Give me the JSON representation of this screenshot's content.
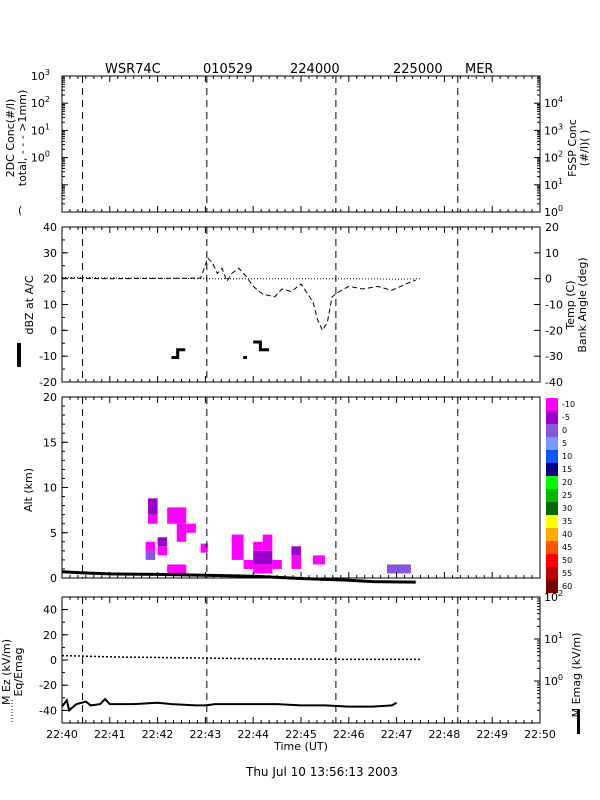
{
  "header": {
    "title_left": "WSR74C",
    "title_date": "010529",
    "title_t1": "224000",
    "title_t2": "225000",
    "title_tag": "MER"
  },
  "footer": {
    "timestamp": "Thu Jul 10 13:56:13 2003"
  },
  "colors": {
    "line": "#000000",
    "bg": "#ffffff"
  },
  "chart_data": [
    {
      "type": "line",
      "id": "conc",
      "ylabel": "2DC Conc(#/l)",
      "ylabel2": "total, - - - >1mm)",
      "ylabel_paren": "(",
      "y2label": "FSSP Conc",
      "y2label2": "(#/l)(  )",
      "yscale": "log",
      "ylim": [
        0.01,
        1000
      ],
      "y2lim": [
        1,
        100000
      ],
      "yticks": [
        {
          "v": 1000,
          "b": "10",
          "e": "3"
        },
        {
          "v": 100,
          "b": "10",
          "e": "2"
        },
        {
          "v": 10,
          "b": "10",
          "e": "1"
        },
        {
          "v": 1,
          "b": "10",
          "e": "0"
        }
      ],
      "y2ticks": [
        {
          "v": 10000,
          "b": "10",
          "e": "4"
        },
        {
          "v": 1000,
          "b": "10",
          "e": "3"
        },
        {
          "v": 100,
          "b": "10",
          "e": "2"
        },
        {
          "v": 10,
          "b": "10",
          "e": "1"
        },
        {
          "v": 1,
          "b": "10",
          "e": "0"
        }
      ],
      "series": []
    },
    {
      "type": "line",
      "id": "dbz",
      "ylabel": "dBZ at A/C",
      "y2label": "Temp (C)",
      "y2label2": "Bank Angle (deg)",
      "ylim": [
        -20,
        40
      ],
      "yticks": [
        "-20",
        "-10",
        "0",
        "10",
        "20",
        "30",
        "40"
      ],
      "y2lim": [
        -40,
        20
      ],
      "y2ticks": [
        "-40",
        "-30",
        "-20",
        "-10",
        "0",
        "10",
        "20"
      ],
      "series": [
        {
          "style": "dbz-thick",
          "points": [
            [
              42.29,
              -10.5
            ],
            [
              42.42,
              -10.5
            ],
            [
              42.42,
              -7.5
            ],
            [
              42.58,
              -7.5
            ]
          ]
        },
        {
          "style": "dbz-thick",
          "points": [
            [
              43.79,
              -10.5
            ],
            [
              43.87,
              -10.5
            ]
          ]
        },
        {
          "style": "dbz-thick",
          "points": [
            [
              44.0,
              -4.5
            ],
            [
              44.15,
              -4.5
            ],
            [
              44.15,
              -7.5
            ],
            [
              44.33,
              -7.5
            ]
          ]
        },
        {
          "style": "temp-dotted",
          "points": [
            [
              40.0,
              0.5
            ],
            [
              41.0,
              0.3
            ],
            [
              42.0,
              0.2
            ],
            [
              43.0,
              0.0
            ],
            [
              44.0,
              0.0
            ],
            [
              45.0,
              0.0
            ],
            [
              46.0,
              0.0
            ],
            [
              47.0,
              -0.2
            ],
            [
              47.5,
              0.0
            ]
          ]
        },
        {
          "style": "bank-dashed",
          "points": [
            [
              40.0,
              0.2
            ],
            [
              41.0,
              0.0
            ],
            [
              42.0,
              0.1
            ],
            [
              42.9,
              0.2
            ],
            [
              43.05,
              8.0
            ],
            [
              43.15,
              6.0
            ],
            [
              43.25,
              2.0
            ],
            [
              43.35,
              4.0
            ],
            [
              43.45,
              -1.0
            ],
            [
              43.55,
              2.0
            ],
            [
              43.7,
              4.0
            ],
            [
              43.85,
              1.0
            ],
            [
              44.0,
              -3.0
            ],
            [
              44.2,
              -6.0
            ],
            [
              44.45,
              -7.0
            ],
            [
              44.6,
              -4.0
            ],
            [
              44.8,
              -5.0
            ],
            [
              45.0,
              -2.0
            ],
            [
              45.25,
              -9.0
            ],
            [
              45.35,
              -16.0
            ],
            [
              45.45,
              -20.0
            ],
            [
              45.55,
              -17.0
            ],
            [
              45.65,
              -7.0
            ],
            [
              45.8,
              -5.0
            ],
            [
              46.0,
              -3.0
            ],
            [
              46.3,
              -4.0
            ],
            [
              46.6,
              -3.0
            ],
            [
              46.9,
              -4.5
            ],
            [
              47.2,
              -2.0
            ],
            [
              47.4,
              -0.5
            ]
          ]
        }
      ]
    },
    {
      "type": "heatmap",
      "id": "radar",
      "ylabel": "Alt (km)",
      "ylim": [
        0,
        20
      ],
      "yticks": [
        "0",
        "5",
        "10",
        "15",
        "20"
      ],
      "colorbar": [
        {
          "label": "-10",
          "color": "#ff00ff"
        },
        {
          "label": "-5",
          "color": "#9900cc"
        },
        {
          "label": "0",
          "color": "#8855dd"
        },
        {
          "label": "5",
          "color": "#7799ff"
        },
        {
          "label": "10",
          "color": "#1155ff"
        },
        {
          "label": "15",
          "color": "#000088"
        },
        {
          "label": "20",
          "color": "#00ff00"
        },
        {
          "label": "25",
          "color": "#00bb00"
        },
        {
          "label": "30",
          "color": "#006600"
        },
        {
          "label": "35",
          "color": "#ffff00"
        },
        {
          "label": "40",
          "color": "#ffaa00"
        },
        {
          "label": "45",
          "color": "#ff5500"
        },
        {
          "label": "50",
          "color": "#ff0000"
        },
        {
          "label": "55",
          "color": "#bb0000"
        },
        {
          "label": "60",
          "color": "#770000"
        }
      ],
      "cells": [
        {
          "x0": 41.8,
          "x1": 42.0,
          "y0": 6.0,
          "y1": 7.0,
          "dbz": -10
        },
        {
          "x0": 41.8,
          "x1": 42.0,
          "y0": 7.0,
          "y1": 8.8,
          "dbz": -5
        },
        {
          "x0": 41.75,
          "x1": 41.95,
          "y0": 2.0,
          "y1": 3.0,
          "dbz": 0
        },
        {
          "x0": 41.75,
          "x1": 41.95,
          "y0": 3.0,
          "y1": 4.0,
          "dbz": -10
        },
        {
          "x0": 42.0,
          "x1": 42.2,
          "y0": 3.5,
          "y1": 4.5,
          "dbz": -5
        },
        {
          "x0": 42.0,
          "x1": 42.2,
          "y0": 2.5,
          "y1": 3.5,
          "dbz": -10
        },
        {
          "x0": 42.2,
          "x1": 42.6,
          "y0": 6.0,
          "y1": 7.8,
          "dbz": -10
        },
        {
          "x0": 42.4,
          "x1": 42.6,
          "y0": 4.0,
          "y1": 6.0,
          "dbz": -10
        },
        {
          "x0": 42.6,
          "x1": 42.8,
          "y0": 5.0,
          "y1": 6.0,
          "dbz": -10
        },
        {
          "x0": 42.2,
          "x1": 42.6,
          "y0": 0.5,
          "y1": 1.5,
          "dbz": -10
        },
        {
          "x0": 42.9,
          "x1": 43.05,
          "y0": 2.8,
          "y1": 3.8,
          "dbz": -10
        },
        {
          "x0": 43.55,
          "x1": 43.8,
          "y0": 2.0,
          "y1": 4.8,
          "dbz": -10
        },
        {
          "x0": 43.8,
          "x1": 44.0,
          "y0": 1.0,
          "y1": 2.0,
          "dbz": -10
        },
        {
          "x0": 44.0,
          "x1": 44.2,
          "y0": 3.0,
          "y1": 4.0,
          "dbz": -10
        },
        {
          "x0": 44.0,
          "x1": 44.4,
          "y0": 1.5,
          "y1": 3.0,
          "dbz": -5
        },
        {
          "x0": 44.0,
          "x1": 44.4,
          "y0": 0.5,
          "y1": 1.5,
          "dbz": -10
        },
        {
          "x0": 44.2,
          "x1": 44.4,
          "y0": 3.0,
          "y1": 4.8,
          "dbz": -10
        },
        {
          "x0": 44.4,
          "x1": 44.6,
          "y0": 1.0,
          "y1": 2.0,
          "dbz": -10
        },
        {
          "x0": 44.8,
          "x1": 45.0,
          "y0": 2.5,
          "y1": 3.5,
          "dbz": -5
        },
        {
          "x0": 44.8,
          "x1": 45.0,
          "y0": 1.0,
          "y1": 2.5,
          "dbz": -10
        },
        {
          "x0": 45.25,
          "x1": 45.5,
          "y0": 1.5,
          "y1": 2.5,
          "dbz": -10
        },
        {
          "x0": 46.8,
          "x1": 47.3,
          "y0": 0.5,
          "y1": 1.5,
          "dbz": 0
        }
      ],
      "series": [
        {
          "style": "alt-thick",
          "points": [
            [
              40.0,
              0.7
            ],
            [
              40.5,
              0.55
            ],
            [
              41.0,
              0.45
            ],
            [
              42.0,
              0.4
            ],
            [
              43.0,
              0.3
            ],
            [
              44.0,
              0.2
            ],
            [
              45.0,
              -0.05
            ],
            [
              46.0,
              -0.25
            ],
            [
              46.5,
              -0.4
            ],
            [
              47.4,
              -0.45
            ]
          ]
        }
      ]
    },
    {
      "type": "line",
      "id": "efield",
      "ylabel": "M Ez (kV/m)",
      "ylabel2": "Eq/Emag",
      "y2label": "M Emag (kV/m)",
      "ylim": [
        -50,
        50
      ],
      "yticks": [
        "-40",
        "-20",
        "0",
        "20",
        "40"
      ],
      "y2scale": "log",
      "y2lim": [
        0.1,
        100
      ],
      "y2ticks": [
        {
          "v": 100,
          "b": "10",
          "e": "2"
        },
        {
          "v": 10,
          "b": "10",
          "e": "1"
        },
        {
          "v": 1,
          "b": "10",
          "e": "0"
        }
      ],
      "xlabel": "Time (UT)",
      "xticks": [
        "22:40",
        "22:41",
        "22:42",
        "22:43",
        "22:44",
        "22:45",
        "22:46",
        "22:47",
        "22:48",
        "22:49",
        "22:50"
      ],
      "series": [
        {
          "style": "ez-dotted",
          "points": [
            [
              40.0,
              3.5
            ],
            [
              40.5,
              3.0
            ],
            [
              41.0,
              2.5
            ],
            [
              42.0,
              2.0
            ],
            [
              43.0,
              1.5
            ],
            [
              44.0,
              1.0
            ],
            [
              45.0,
              0.8
            ],
            [
              46.0,
              0.5
            ],
            [
              47.0,
              0.5
            ],
            [
              47.5,
              0.5
            ]
          ]
        },
        {
          "style": "emag-solid",
          "points": [
            [
              40.0,
              -37
            ],
            [
              40.1,
              -32
            ],
            [
              40.15,
              -40
            ],
            [
              40.3,
              -35
            ],
            [
              40.5,
              -33
            ],
            [
              40.6,
              -36
            ],
            [
              40.8,
              -35
            ],
            [
              40.9,
              -31
            ],
            [
              41.0,
              -35
            ],
            [
              41.5,
              -35
            ],
            [
              42.0,
              -34
            ],
            [
              42.3,
              -35
            ],
            [
              42.8,
              -36
            ],
            [
              43.0,
              -36
            ],
            [
              43.2,
              -35
            ],
            [
              43.5,
              -35
            ],
            [
              44.0,
              -35
            ],
            [
              44.5,
              -35
            ],
            [
              45.0,
              -36
            ],
            [
              45.5,
              -36
            ],
            [
              46.0,
              -37
            ],
            [
              46.5,
              -37
            ],
            [
              46.9,
              -36
            ],
            [
              47.0,
              -34
            ]
          ]
        }
      ]
    }
  ]
}
